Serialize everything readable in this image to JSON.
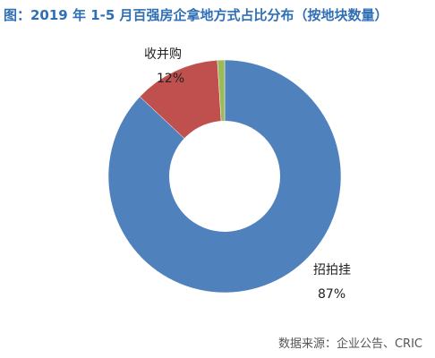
{
  "chart_data": {
    "type": "pie",
    "title": "图：2019 年 1-5 月百强房企拿地方式占比分布（按地块数量）",
    "donut": true,
    "slices": [
      {
        "label": "招拍挂",
        "value": 87,
        "value_label": "87%",
        "color": "#4f81bd"
      },
      {
        "label": "收并购",
        "value": 12,
        "value_label": "12%",
        "color": "#c0504d"
      },
      {
        "label": "",
        "value": 1,
        "value_label": "",
        "color": "#9bbb59"
      }
    ],
    "legend": "none"
  },
  "source": "数据来源：企业公告、CRIC"
}
